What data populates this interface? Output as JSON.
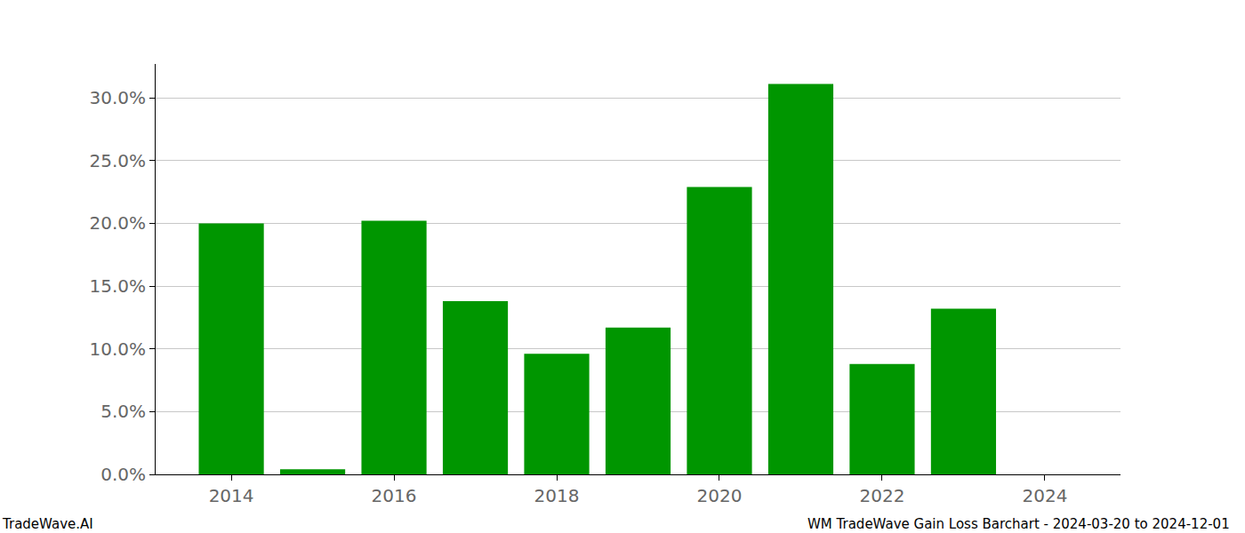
{
  "chart_data": {
    "type": "bar",
    "x": [
      2014,
      2015,
      2016,
      2017,
      2018,
      2019,
      2020,
      2021,
      2022,
      2023
    ],
    "values": [
      20.0,
      0.4,
      20.2,
      13.8,
      9.6,
      11.7,
      22.9,
      31.1,
      8.8,
      13.2
    ],
    "color": "#009600",
    "xlim": [
      2013.07,
      2024.93
    ],
    "xticks": [
      2014,
      2016,
      2018,
      2020,
      2022,
      2024
    ],
    "ylim": [
      0,
      32.7
    ],
    "yticks": [
      {
        "value": 0,
        "label": "0.0%"
      },
      {
        "value": 5,
        "label": "5.0%"
      },
      {
        "value": 10,
        "label": "10.0%"
      },
      {
        "value": 15,
        "label": "15.0%"
      },
      {
        "value": 20,
        "label": "20.0%"
      },
      {
        "value": 25,
        "label": "25.0%"
      },
      {
        "value": 30,
        "label": "30.0%"
      }
    ],
    "grid": true,
    "annotations": [
      "TradeWave.AI",
      "WM TradeWave Gain Loss Barchart - 2024-03-20 to 2024-12-01"
    ]
  }
}
